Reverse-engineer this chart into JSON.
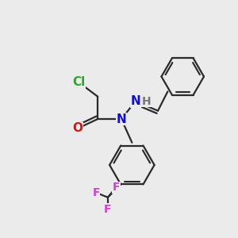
{
  "background_color": "#ebebeb",
  "bond_color": "#2a2a2a",
  "bond_width": 1.6,
  "cl_color": "#22aa22",
  "o_color": "#dd1111",
  "n_color": "#1111cc",
  "f_color": "#cc44cc",
  "h_color": "#777777",
  "font_size": 10,
  "figsize": [
    3.0,
    3.0
  ],
  "dpi": 100,
  "xlim": [
    0,
    10
  ],
  "ylim": [
    0,
    10
  ]
}
